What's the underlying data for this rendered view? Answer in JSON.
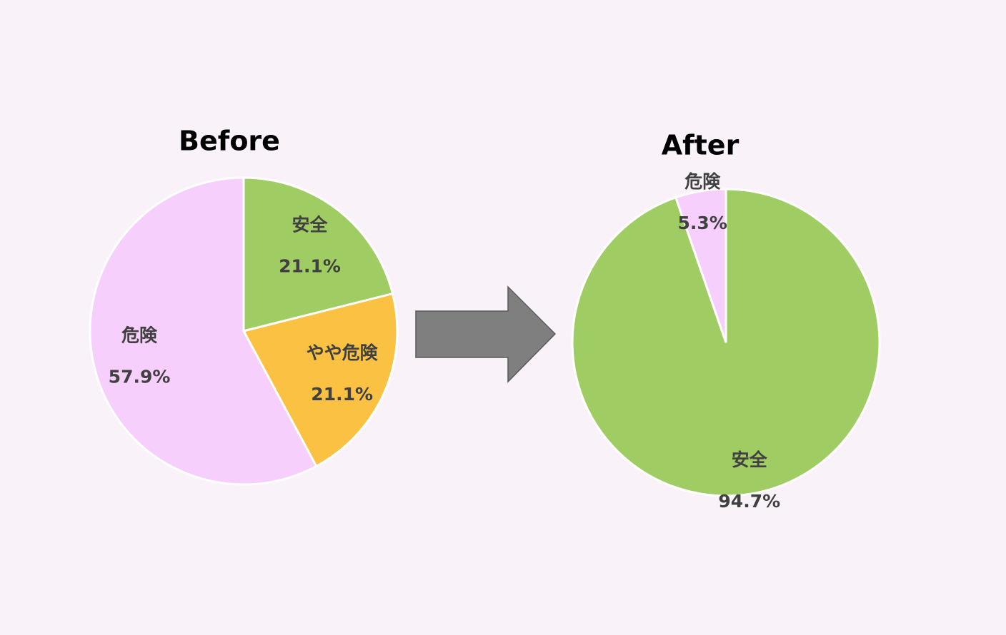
{
  "chart_data": [
    {
      "type": "pie",
      "title": "Before",
      "categories": [
        "安全",
        "やや危険",
        "危険"
      ],
      "values": [
        21.1,
        21.1,
        57.9
      ],
      "value_labels": [
        "21.1%",
        "21.1%",
        "57.9%"
      ],
      "colors": [
        "#a0cd63",
        "#fbc143",
        "#f7cffc"
      ]
    },
    {
      "type": "pie",
      "title": "After",
      "categories": [
        "安全",
        "危険"
      ],
      "values": [
        94.7,
        5.3
      ],
      "value_labels": [
        "94.7%",
        "5.3%"
      ],
      "colors": [
        "#a0cd63",
        "#f7cffc"
      ]
    }
  ]
}
